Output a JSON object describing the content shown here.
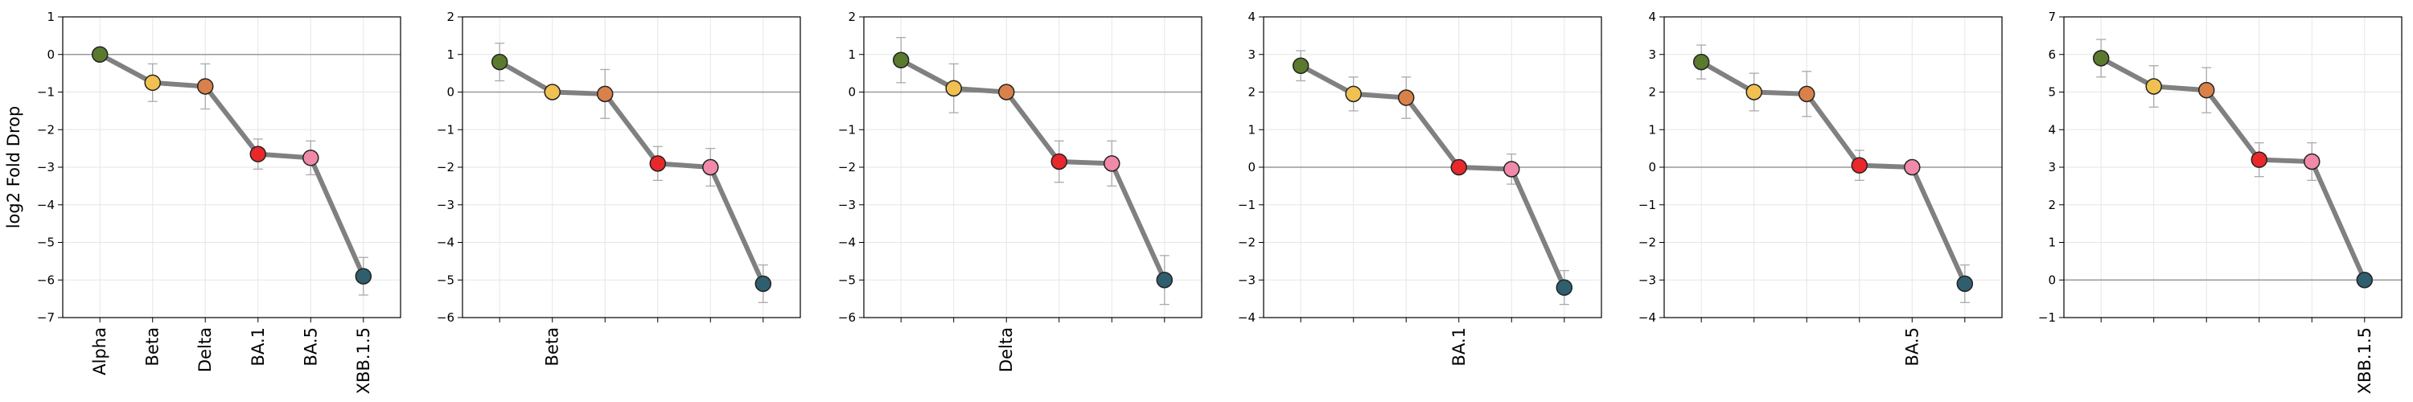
{
  "chart_data": [
    {
      "type": "line",
      "ylabel": "log2 Fold Drop",
      "ylim": [
        -7,
        1
      ],
      "yticks": [
        -7,
        -6,
        -5,
        -4,
        -3,
        -2,
        -1,
        0,
        1
      ],
      "categories": [
        "Alpha",
        "Beta",
        "Delta",
        "BA.1",
        "BA.5",
        "XBB.1.5"
      ],
      "tick_labels": [
        "Alpha",
        "Beta",
        "Delta",
        "BA.1",
        "BA.5",
        "XBB.1.5"
      ],
      "values": [
        0.0,
        -0.75,
        -0.85,
        -2.65,
        -2.75,
        -5.9
      ],
      "errors": [
        0.0,
        0.5,
        0.6,
        0.4,
        0.45,
        0.5
      ],
      "grid": true
    },
    {
      "type": "line",
      "ylabel": "",
      "ylim": [
        -6,
        2
      ],
      "yticks": [
        -6,
        -5,
        -4,
        -3,
        -2,
        -1,
        0,
        1,
        2
      ],
      "categories": [
        "Alpha",
        "Beta",
        "Delta",
        "BA.1",
        "BA.5",
        "XBB.1.5"
      ],
      "tick_labels": [
        "",
        "Beta",
        "",
        "",
        "",
        ""
      ],
      "values": [
        0.8,
        0.0,
        -0.05,
        -1.9,
        -2.0,
        -5.1
      ],
      "errors": [
        0.5,
        0.0,
        0.65,
        0.45,
        0.5,
        0.5
      ],
      "grid": true
    },
    {
      "type": "line",
      "ylabel": "",
      "ylim": [
        -6,
        2
      ],
      "yticks": [
        -6,
        -5,
        -4,
        -3,
        -2,
        -1,
        0,
        1,
        2
      ],
      "categories": [
        "Alpha",
        "Beta",
        "Delta",
        "BA.1",
        "BA.5",
        "XBB.1.5"
      ],
      "tick_labels": [
        "",
        "",
        "Delta",
        "",
        "",
        ""
      ],
      "values": [
        0.85,
        0.1,
        0.0,
        -1.85,
        -1.9,
        -5.0
      ],
      "errors": [
        0.6,
        0.65,
        0.0,
        0.55,
        0.6,
        0.65
      ],
      "grid": true
    },
    {
      "type": "line",
      "ylabel": "",
      "ylim": [
        -4,
        4
      ],
      "yticks": [
        -4,
        -3,
        -2,
        -1,
        0,
        1,
        2,
        3,
        4
      ],
      "categories": [
        "Alpha",
        "Beta",
        "Delta",
        "BA.1",
        "BA.5",
        "XBB.1.5"
      ],
      "tick_labels": [
        "",
        "",
        "",
        "BA.1",
        "",
        ""
      ],
      "values": [
        2.7,
        1.95,
        1.85,
        0.0,
        -0.05,
        -3.2
      ],
      "errors": [
        0.4,
        0.45,
        0.55,
        0.0,
        0.4,
        0.45
      ],
      "grid": true
    },
    {
      "type": "line",
      "ylabel": "",
      "ylim": [
        -4,
        4
      ],
      "yticks": [
        -4,
        -3,
        -2,
        -1,
        0,
        1,
        2,
        3,
        4
      ],
      "categories": [
        "Alpha",
        "Beta",
        "Delta",
        "BA.1",
        "BA.5",
        "XBB.1.5"
      ],
      "tick_labels": [
        "",
        "",
        "",
        "",
        "BA.5",
        ""
      ],
      "values": [
        2.8,
        2.0,
        1.95,
        0.05,
        0.0,
        -3.1
      ],
      "errors": [
        0.45,
        0.5,
        0.6,
        0.4,
        0.0,
        0.5
      ],
      "grid": true
    },
    {
      "type": "line",
      "ylabel": "",
      "ylim": [
        -1,
        7
      ],
      "yticks": [
        -1,
        0,
        1,
        2,
        3,
        4,
        5,
        6,
        7
      ],
      "categories": [
        "Alpha",
        "Beta",
        "Delta",
        "BA.1",
        "BA.5",
        "XBB.1.5"
      ],
      "tick_labels": [
        "",
        "",
        "",
        "",
        "",
        "XBB.1.5"
      ],
      "values": [
        5.9,
        5.15,
        5.05,
        3.2,
        3.15,
        0.0
      ],
      "errors": [
        0.5,
        0.55,
        0.6,
        0.45,
        0.5,
        0.0
      ],
      "grid": true
    }
  ],
  "colors": {
    "line": "#808080",
    "zero_line": "#999999",
    "grid": "#e6e6e6",
    "errorbar": "#aaaaaa",
    "marker_edge": "#222222",
    "markers": [
      "#5a7a2e",
      "#f0c050",
      "#d9814a",
      "#e8282b",
      "#f08aa8",
      "#2f5f6e"
    ]
  }
}
